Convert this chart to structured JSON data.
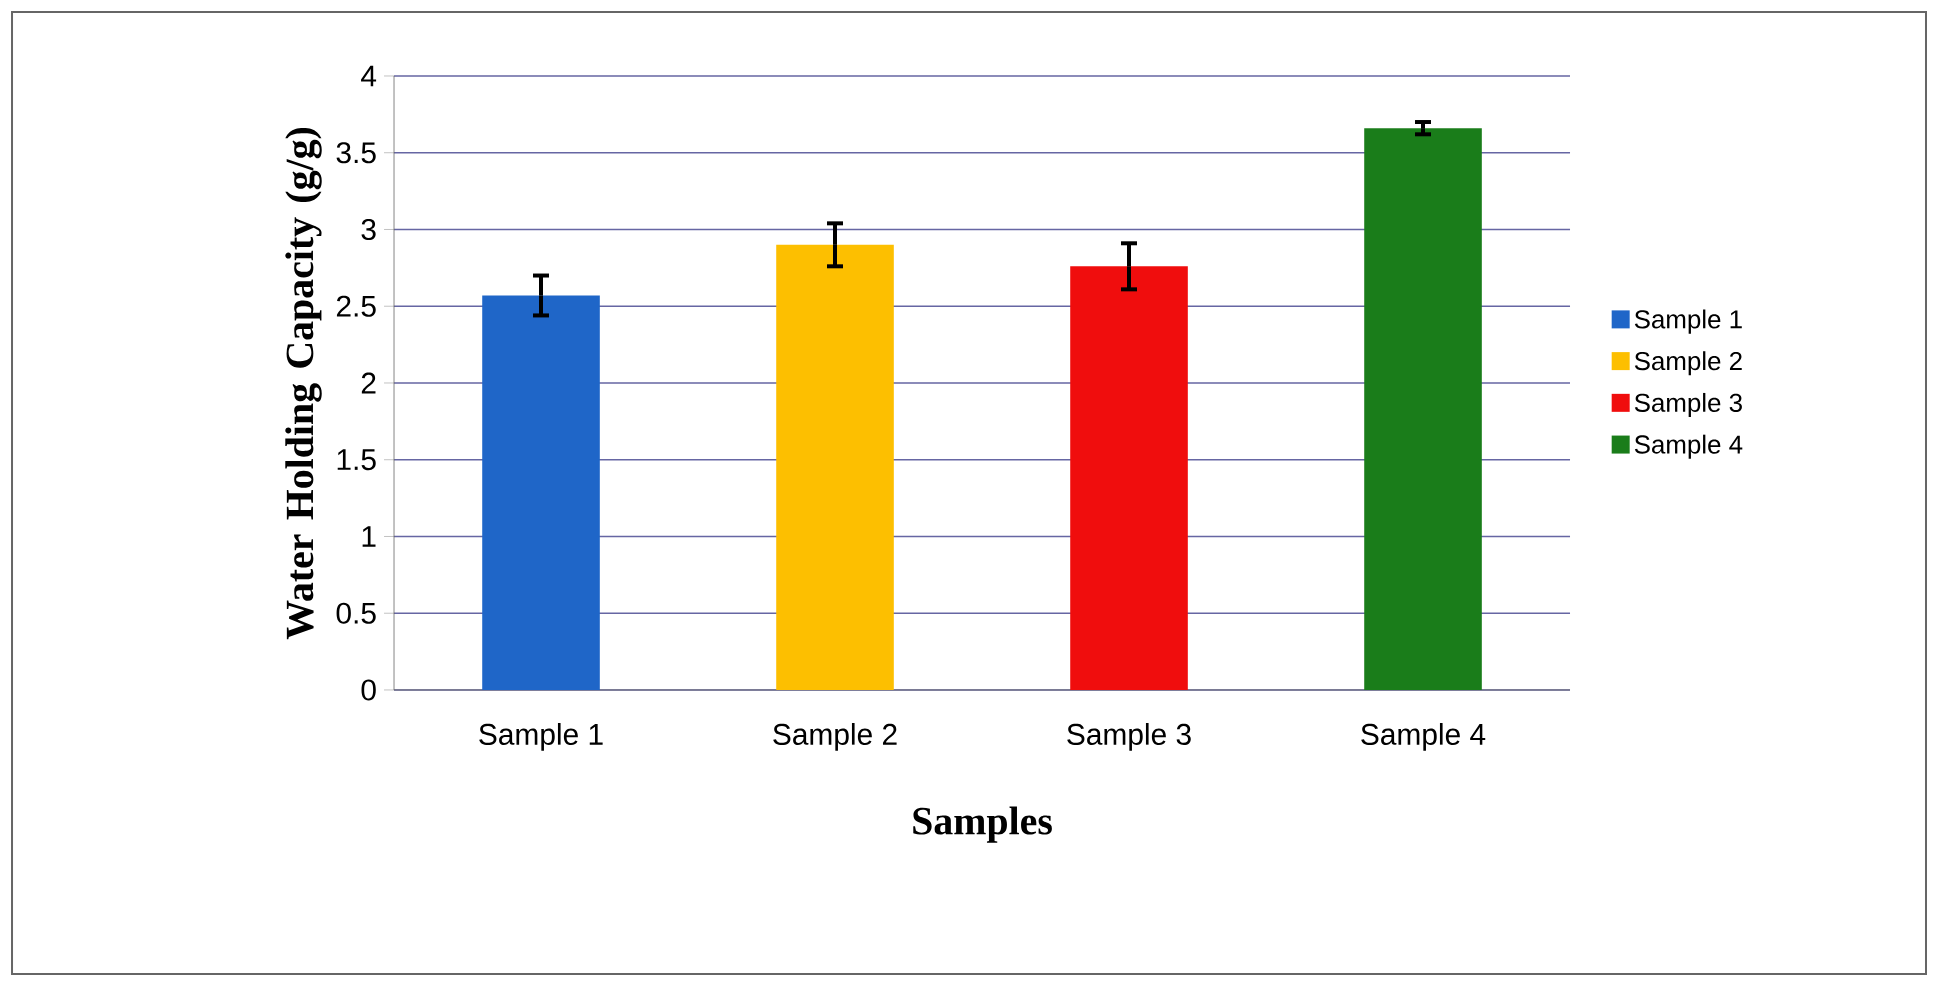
{
  "chart_data": {
    "type": "bar",
    "xlabel": "Samples",
    "ylabel": "Water Holding Capacity (g/g)",
    "categories": [
      "Sample 1",
      "Sample 2",
      "Sample 3",
      "Sample 4"
    ],
    "series": [
      {
        "name": "Sample 1",
        "color": "#1f66c8",
        "values": [
          2.57,
          null,
          null,
          null
        ],
        "errors": [
          0.13,
          null,
          null,
          null
        ]
      },
      {
        "name": "Sample 2",
        "color": "#fdbf00",
        "values": [
          null,
          2.9,
          null,
          null
        ],
        "errors": [
          null,
          0.14,
          null,
          null
        ]
      },
      {
        "name": "Sample 3",
        "color": "#f00d0d",
        "values": [
          null,
          null,
          2.76,
          null
        ],
        "errors": [
          null,
          null,
          0.15,
          null
        ]
      },
      {
        "name": "Sample 4",
        "color": "#1a7d1a",
        "values": [
          null,
          null,
          null,
          3.66
        ],
        "errors": [
          null,
          null,
          null,
          0.04
        ]
      }
    ],
    "ylim": [
      0,
      4
    ],
    "yticks": [
      0,
      0.5,
      1,
      1.5,
      2,
      2.5,
      3,
      3.5,
      4
    ],
    "grid": "y",
    "legend": "right"
  }
}
